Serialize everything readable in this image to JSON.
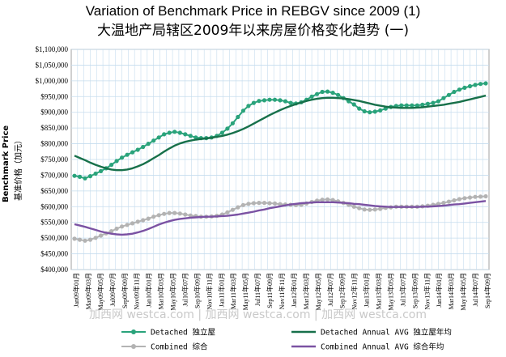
{
  "title": "Variation of Benchmark Price in REBGV since 2009 (1)",
  "subtitle": "大温地产局辖区2009年以来房屋价格变化趋势 (一)",
  "watermark": "加西网 westca.com | 加西网 westca.com | 加西网 westca.com",
  "chart_data": {
    "type": "line",
    "ylabel": "Benchmark Price",
    "ylabel_cn": "基准价格（加元）",
    "ylim": [
      400000,
      1100000
    ],
    "y_ticks": [
      "$1,100,000",
      "$1,050,000",
      "$1,000,000",
      "$950,000",
      "$900,000",
      "$850,000",
      "$800,000",
      "$750,000",
      "$700,000",
      "$650,000",
      "$600,000",
      "$550,000",
      "$500,000",
      "$450,000",
      "$400,000"
    ],
    "x_tick_labels": [
      "Jan09年01月",
      "Mar09年03月",
      "May09年05月",
      "Jul09年07月",
      "Sep09年09月",
      "Nov09年11月",
      "Jan10年01月",
      "Mar10年03月",
      "May10年05月",
      "Jul10年07月",
      "Sep10年09月",
      "Nov10年11月",
      "Jan11年01月",
      "Mar11年03月",
      "May11年05月",
      "Jul11年07月",
      "Sep11年09月",
      "Nov11年11月",
      "Jan12年01月",
      "Mar12年03月",
      "May12年05月",
      "Jul12年07月",
      "Sep12年09月",
      "Nov12年11月",
      "Jan13年01月",
      "Mar13年03月",
      "May13年05月",
      "Jul13年07月",
      "Sep13年09月",
      "Nov13年11月",
      "Jan14年01月",
      "Mar14年03月",
      "May14年05月",
      "Jul14年07月",
      "Sep14年09月"
    ],
    "grid": true,
    "legend_position": "bottom",
    "series": [
      {
        "name": "Detached 独立屋",
        "color": "#2aa37b",
        "marker": true,
        "values": [
          698000,
          695000,
          690000,
          697000,
          705000,
          713000,
          722000,
          733000,
          745000,
          756000,
          765000,
          773000,
          781000,
          790000,
          800000,
          810000,
          820000,
          830000,
          835000,
          838000,
          835000,
          830000,
          825000,
          820000,
          818000,
          818000,
          820000,
          825000,
          835000,
          848000,
          865000,
          885000,
          905000,
          920000,
          930000,
          936000,
          938000,
          940000,
          940000,
          938000,
          935000,
          930000,
          928000,
          932000,
          940000,
          950000,
          958000,
          965000,
          966000,
          962000,
          955000,
          945000,
          935000,
          925000,
          912000,
          903000,
          900000,
          902000,
          906000,
          912000,
          917000,
          920000,
          922000,
          922000,
          922000,
          922000,
          924000,
          927000,
          930000,
          935000,
          945000,
          955000,
          965000,
          972000,
          978000,
          983000,
          987000,
          990000,
          992000
        ]
      },
      {
        "name": "Detached Annual AVG 独立屋年均",
        "color": "#17704a",
        "marker": false,
        "values": [
          762000,
          755000,
          748000,
          740000,
          733000,
          727000,
          722000,
          718000,
          716000,
          716000,
          718000,
          722000,
          728000,
          735000,
          744000,
          754000,
          764000,
          775000,
          785000,
          794000,
          801000,
          806000,
          810000,
          813000,
          815000,
          817000,
          819000,
          822000,
          825000,
          829000,
          834000,
          840000,
          847000,
          855000,
          864000,
          873000,
          882000,
          891000,
          899000,
          907000,
          914000,
          920000,
          926000,
          931000,
          936000,
          940000,
          943000,
          945000,
          946000,
          946000,
          945000,
          944000,
          942000,
          939000,
          936000,
          932000,
          928000,
          924000,
          921000,
          918000,
          916000,
          915000,
          914000,
          914000,
          914000,
          915000,
          916000,
          918000,
          920000,
          922000,
          924000,
          927000,
          930000,
          933000,
          937000,
          941000,
          945000,
          949000,
          953000
        ]
      },
      {
        "name": "Combined 综合",
        "color": "#b3b3b3",
        "marker": true,
        "values": [
          498000,
          495000,
          492000,
          495000,
          501000,
          508000,
          515000,
          522000,
          530000,
          537000,
          542000,
          547000,
          552000,
          557000,
          562000,
          568000,
          573000,
          577000,
          580000,
          580000,
          578000,
          575000,
          572000,
          570000,
          568000,
          568000,
          569000,
          571000,
          575000,
          582000,
          590000,
          598000,
          605000,
          609000,
          611000,
          612000,
          612000,
          611000,
          610000,
          608000,
          607000,
          606000,
          605000,
          606000,
          610000,
          615000,
          619000,
          622000,
          623000,
          621000,
          617000,
          612000,
          606000,
          600000,
          595000,
          591000,
          590000,
          591000,
          593000,
          596000,
          598000,
          600000,
          600000,
          600000,
          600000,
          600000,
          601000,
          603000,
          606000,
          609000,
          612000,
          616000,
          620000,
          624000,
          627000,
          629000,
          631000,
          632000,
          633000
        ]
      },
      {
        "name": "Combined Annual AVG 综合年均",
        "color": "#7b52a3",
        "marker": false,
        "values": [
          544000,
          540000,
          536000,
          531000,
          526000,
          521000,
          517000,
          514000,
          512000,
          511000,
          512000,
          514000,
          518000,
          523000,
          529000,
          536000,
          543000,
          549000,
          554000,
          558000,
          561000,
          563000,
          565000,
          566000,
          567000,
          568000,
          568000,
          569000,
          570000,
          571000,
          573000,
          575000,
          578000,
          581000,
          584000,
          588000,
          591000,
          595000,
          598000,
          601000,
          604000,
          607000,
          609000,
          611000,
          612000,
          613000,
          614000,
          614000,
          614000,
          614000,
          613000,
          612000,
          611000,
          609000,
          608000,
          606000,
          604000,
          602000,
          601000,
          600000,
          599000,
          599000,
          599000,
          599000,
          599000,
          599000,
          600000,
          600000,
          601000,
          602000,
          603000,
          605000,
          607000,
          608000,
          610000,
          612000,
          614000,
          616000,
          618000
        ]
      }
    ]
  }
}
